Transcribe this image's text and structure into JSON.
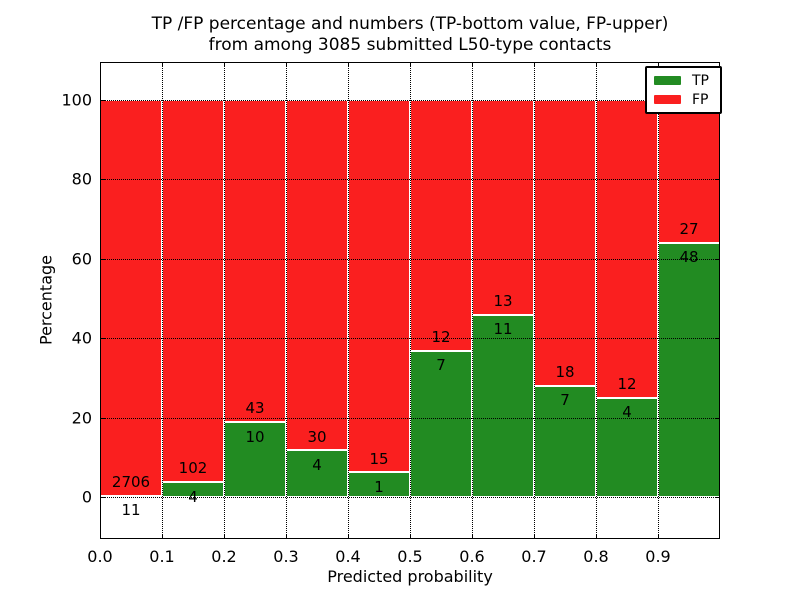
{
  "figure": {
    "title_line1": "TP /FP percentage and numbers (TP-bottom value, FP-upper)",
    "title_line2": "from among 3085 submitted L50-type contacts"
  },
  "axes": {
    "xlabel": "Predicted probability",
    "ylabel": "Percentage",
    "x_tick_labels": [
      "0.0",
      "0.1",
      "0.2",
      "0.3",
      "0.4",
      "0.5",
      "0.6",
      "0.7",
      "0.8",
      "0.9"
    ],
    "y_tick_labels": [
      "0",
      "20",
      "40",
      "60",
      "80",
      "100"
    ]
  },
  "legend": {
    "position": "upper-right",
    "items": [
      {
        "label": "TP",
        "color": "#228b22"
      },
      {
        "label": "FP",
        "color": "#fa1f1f"
      }
    ]
  },
  "chart_data": {
    "type": "bar",
    "subtype": "stacked-percentage",
    "title": "TP /FP percentage and numbers (TP-bottom value, FP-upper) from among 3085 submitted L50-type contacts",
    "xlabel": "Predicted probability",
    "ylabel": "Percentage",
    "total_contacts": 3085,
    "categories": [
      "0.0-0.1",
      "0.1-0.2",
      "0.2-0.3",
      "0.3-0.4",
      "0.4-0.5",
      "0.5-0.6",
      "0.6-0.7",
      "0.7-0.8",
      "0.8-0.9",
      "0.9-1.0"
    ],
    "bin_edges": [
      0.0,
      0.1,
      0.2,
      0.3,
      0.4,
      0.5,
      0.6,
      0.7,
      0.8,
      0.9,
      1.0
    ],
    "series": [
      {
        "name": "TP",
        "color": "#228b22",
        "counts": [
          11,
          4,
          10,
          4,
          1,
          7,
          11,
          7,
          4,
          48
        ],
        "percent": [
          0.4,
          3.8,
          18.9,
          11.8,
          6.3,
          36.8,
          45.8,
          28.0,
          25.0,
          64.0
        ]
      },
      {
        "name": "FP",
        "color": "#fa1f1f",
        "counts": [
          2706,
          102,
          43,
          30,
          15,
          12,
          13,
          18,
          12,
          27
        ],
        "percent": [
          99.6,
          96.2,
          81.1,
          88.2,
          93.8,
          63.2,
          54.2,
          72.0,
          75.0,
          36.0
        ]
      }
    ],
    "bar_value_labels": "FP count printed above TP/FP boundary, TP count printed below boundary",
    "xlim": [
      0.0,
      1.0
    ],
    "ylim": [
      -10.5,
      109.5
    ],
    "x_ticks": [
      0.0,
      0.1,
      0.2,
      0.3,
      0.4,
      0.5,
      0.6,
      0.7,
      0.8,
      0.9
    ],
    "y_ticks": [
      0,
      20,
      40,
      60,
      80,
      100
    ],
    "grid": "dotted-black-above-bars",
    "bar_edge_color": "#ffffff",
    "legend_position": "upper-right"
  }
}
